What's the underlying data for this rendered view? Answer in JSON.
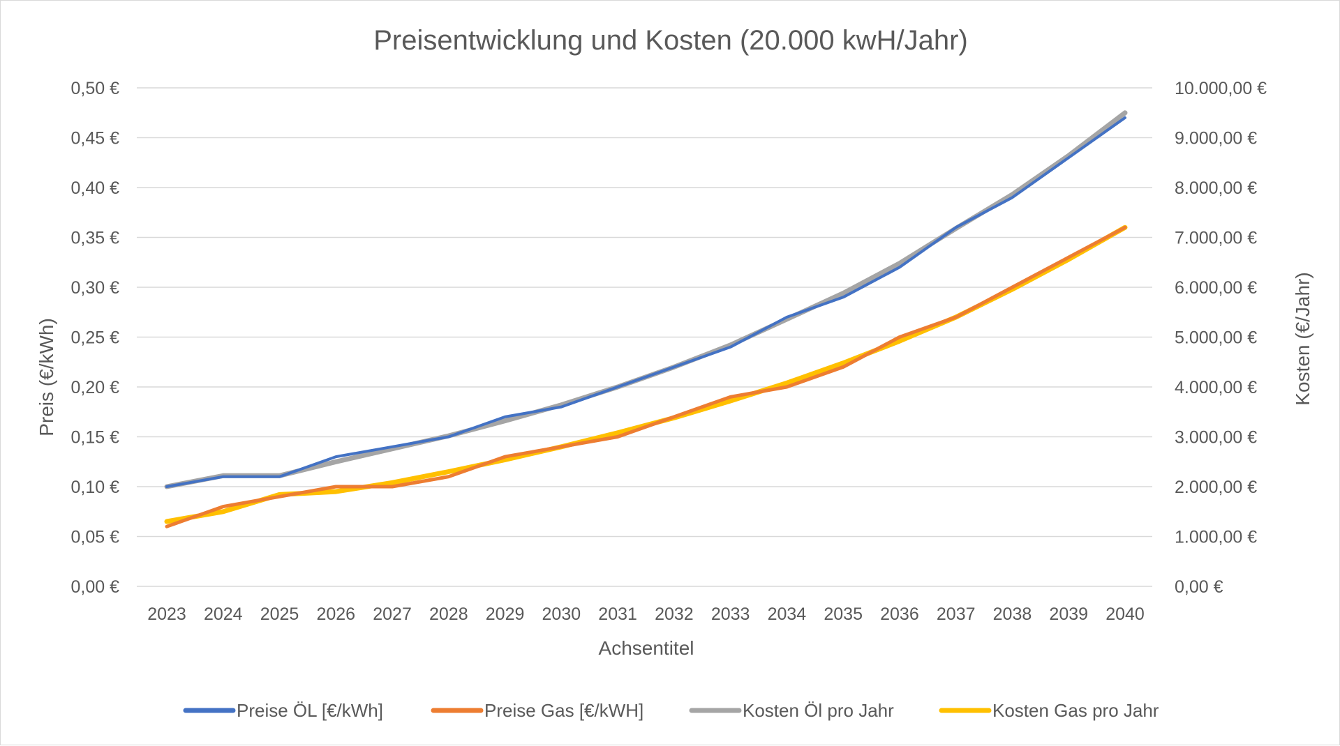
{
  "chart_data": {
    "type": "line",
    "title": "Preisentwicklung und Kosten (20.000 kwH/Jahr)",
    "xlabel": "Achsentitel",
    "ylabel_left": "Preis (€/kWh)",
    "ylabel_right": "Kosten (€/Jahr)",
    "categories": [
      "2023",
      "2024",
      "2025",
      "2026",
      "2027",
      "2028",
      "2029",
      "2030",
      "2031",
      "2032",
      "2033",
      "2034",
      "2035",
      "2036",
      "2037",
      "2038",
      "2039",
      "2040"
    ],
    "y_left": {
      "min": 0,
      "max": 0.5,
      "ticks": [
        0,
        0.05,
        0.1,
        0.15,
        0.2,
        0.25,
        0.3,
        0.35,
        0.4,
        0.45,
        0.5
      ],
      "tick_labels": [
        "0,00 €",
        "0,05 €",
        "0,10 €",
        "0,15 €",
        "0,20 €",
        "0,25 €",
        "0,30 €",
        "0,35 €",
        "0,40 €",
        "0,45 €",
        "0,50 €"
      ]
    },
    "y_right": {
      "min": 0,
      "max": 10000,
      "ticks": [
        0,
        1000,
        2000,
        3000,
        4000,
        5000,
        6000,
        7000,
        8000,
        9000,
        10000
      ],
      "tick_labels": [
        "0,00 €",
        "1.000,00 €",
        "2.000,00 €",
        "3.000,00 €",
        "4.000,00 €",
        "5.000,00 €",
        "6.000,00 €",
        "7.000,00 €",
        "8.000,00 €",
        "9.000,00 €",
        "10.000,00 €"
      ]
    },
    "grid": true,
    "legend_position": "bottom",
    "series": [
      {
        "name": "Preise ÖL [€/kWh]",
        "axis": "left",
        "color": "#4472c4",
        "values": [
          0.1,
          0.11,
          0.11,
          0.13,
          0.14,
          0.15,
          0.17,
          0.18,
          0.2,
          0.22,
          0.24,
          0.27,
          0.29,
          0.32,
          0.36,
          0.39,
          0.43,
          0.47
        ]
      },
      {
        "name": "Preise Gas [€/kWH]",
        "axis": "left",
        "color": "#ed7d31",
        "values": [
          0.06,
          0.08,
          0.09,
          0.1,
          0.1,
          0.11,
          0.13,
          0.14,
          0.15,
          0.17,
          0.19,
          0.2,
          0.22,
          0.25,
          0.27,
          0.3,
          0.33,
          0.36
        ]
      },
      {
        "name": "Kosten Öl pro Jahr",
        "axis": "right",
        "color": "#a5a5a5",
        "values": [
          2000,
          2220,
          2220,
          2500,
          2760,
          3020,
          3320,
          3640,
          4000,
          4400,
          4840,
          5360,
          5880,
          6480,
          7180,
          7860,
          8640,
          9500
        ]
      },
      {
        "name": "Kosten Gas pro Jahr",
        "axis": "right",
        "color": "#ffc000",
        "values": [
          1300,
          1500,
          1840,
          1900,
          2080,
          2300,
          2540,
          2800,
          3080,
          3380,
          3720,
          4080,
          4480,
          4920,
          5400,
          5960,
          6560,
          7200
        ]
      }
    ]
  }
}
